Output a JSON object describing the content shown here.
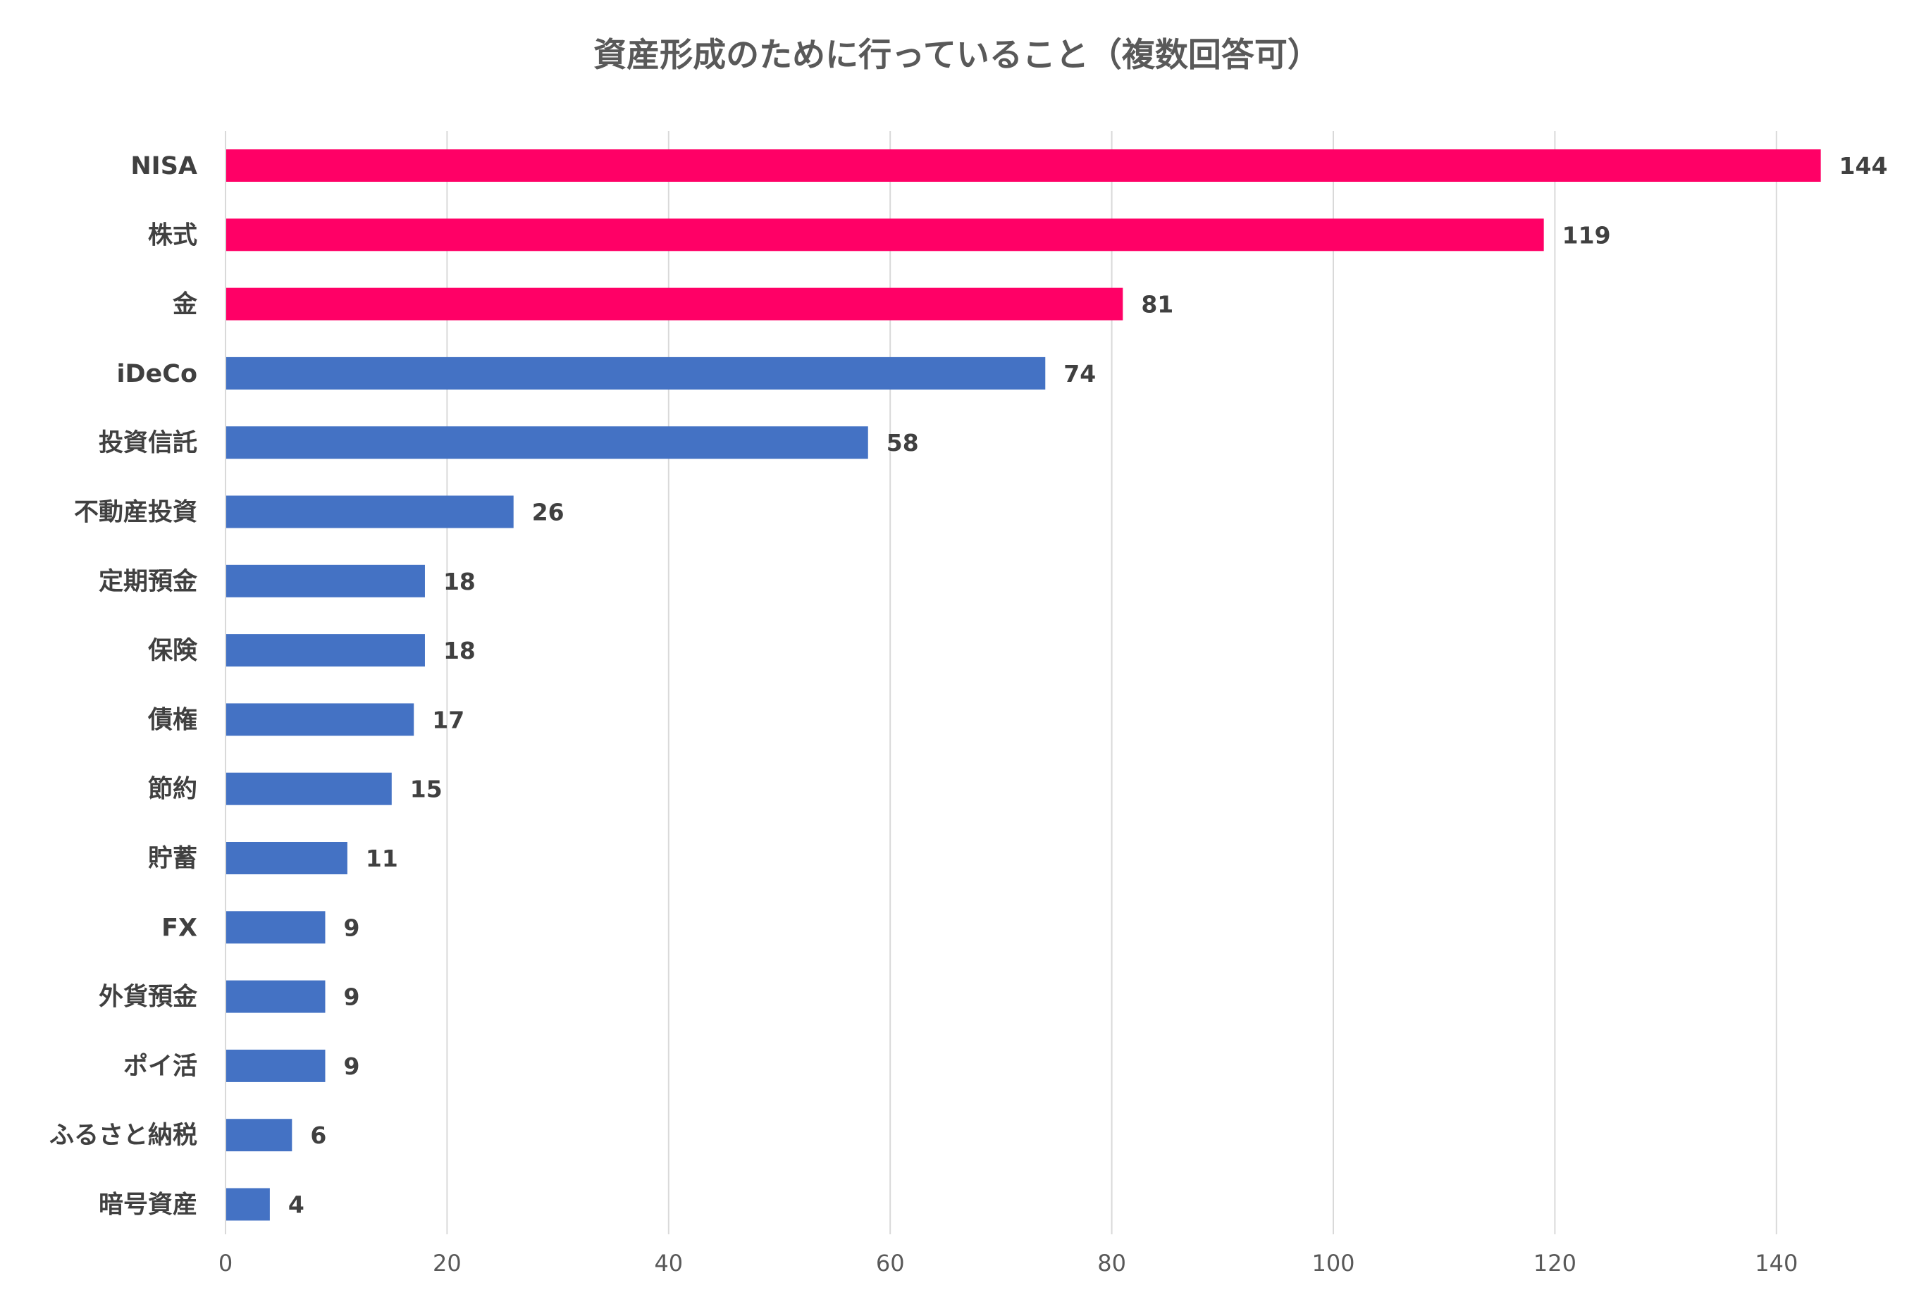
{
  "chart_data": {
    "type": "bar",
    "orientation": "horizontal",
    "title": "資産形成のために行っていること（複数回答可）",
    "xlabel": "",
    "ylabel": "",
    "xlim": [
      0,
      150
    ],
    "x_ticks": [
      0,
      20,
      40,
      60,
      80,
      100,
      120,
      140
    ],
    "grid": "vertical",
    "legend": "none",
    "highlight_color": "#FF0066",
    "default_color": "#4472C4",
    "categories": [
      "NISA",
      "株式",
      "金",
      "iDeCo",
      "投資信託",
      "不動産投資",
      "定期預金",
      "保険",
      "債権",
      "節約",
      "貯蓄",
      "FX",
      "外貨預金",
      "ポイ活",
      "ふるさと納税",
      "暗号資産"
    ],
    "values": [
      144,
      119,
      81,
      74,
      58,
      26,
      18,
      18,
      17,
      15,
      11,
      9,
      9,
      9,
      6,
      4
    ],
    "highlighted": [
      true,
      true,
      true,
      false,
      false,
      false,
      false,
      false,
      false,
      false,
      false,
      false,
      false,
      false,
      false,
      false
    ]
  }
}
